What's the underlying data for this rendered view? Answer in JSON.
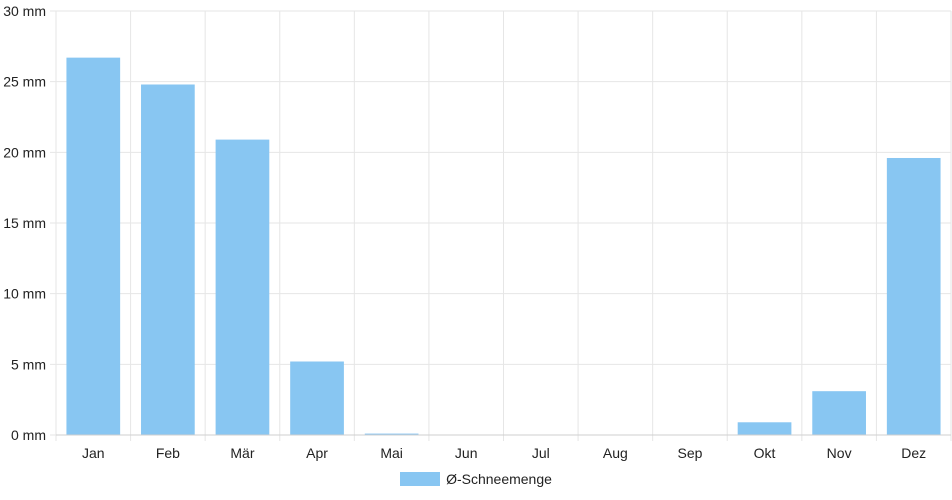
{
  "chart_data": {
    "type": "bar",
    "categories": [
      "Jan",
      "Feb",
      "Mär",
      "Apr",
      "Mai",
      "Jun",
      "Jul",
      "Aug",
      "Sep",
      "Okt",
      "Nov",
      "Dez"
    ],
    "series": [
      {
        "name": "Ø-Schneemenge",
        "values": [
          26.7,
          24.8,
          20.9,
          5.2,
          0.1,
          0,
          0,
          0,
          0,
          0.9,
          3.1,
          19.6
        ],
        "color": "#88c6f2"
      }
    ],
    "yticks": [
      "0 mm",
      "5 mm",
      "10 mm",
      "15 mm",
      "20 mm",
      "25 mm",
      "30 mm"
    ],
    "ylim": [
      0,
      30
    ],
    "ytick_step": 5,
    "grid": true,
    "legend_position": "bottom"
  },
  "colors": {
    "bar": "#88c6f2",
    "grid": "#e6e6e6",
    "axis": "#cfcfcf"
  }
}
